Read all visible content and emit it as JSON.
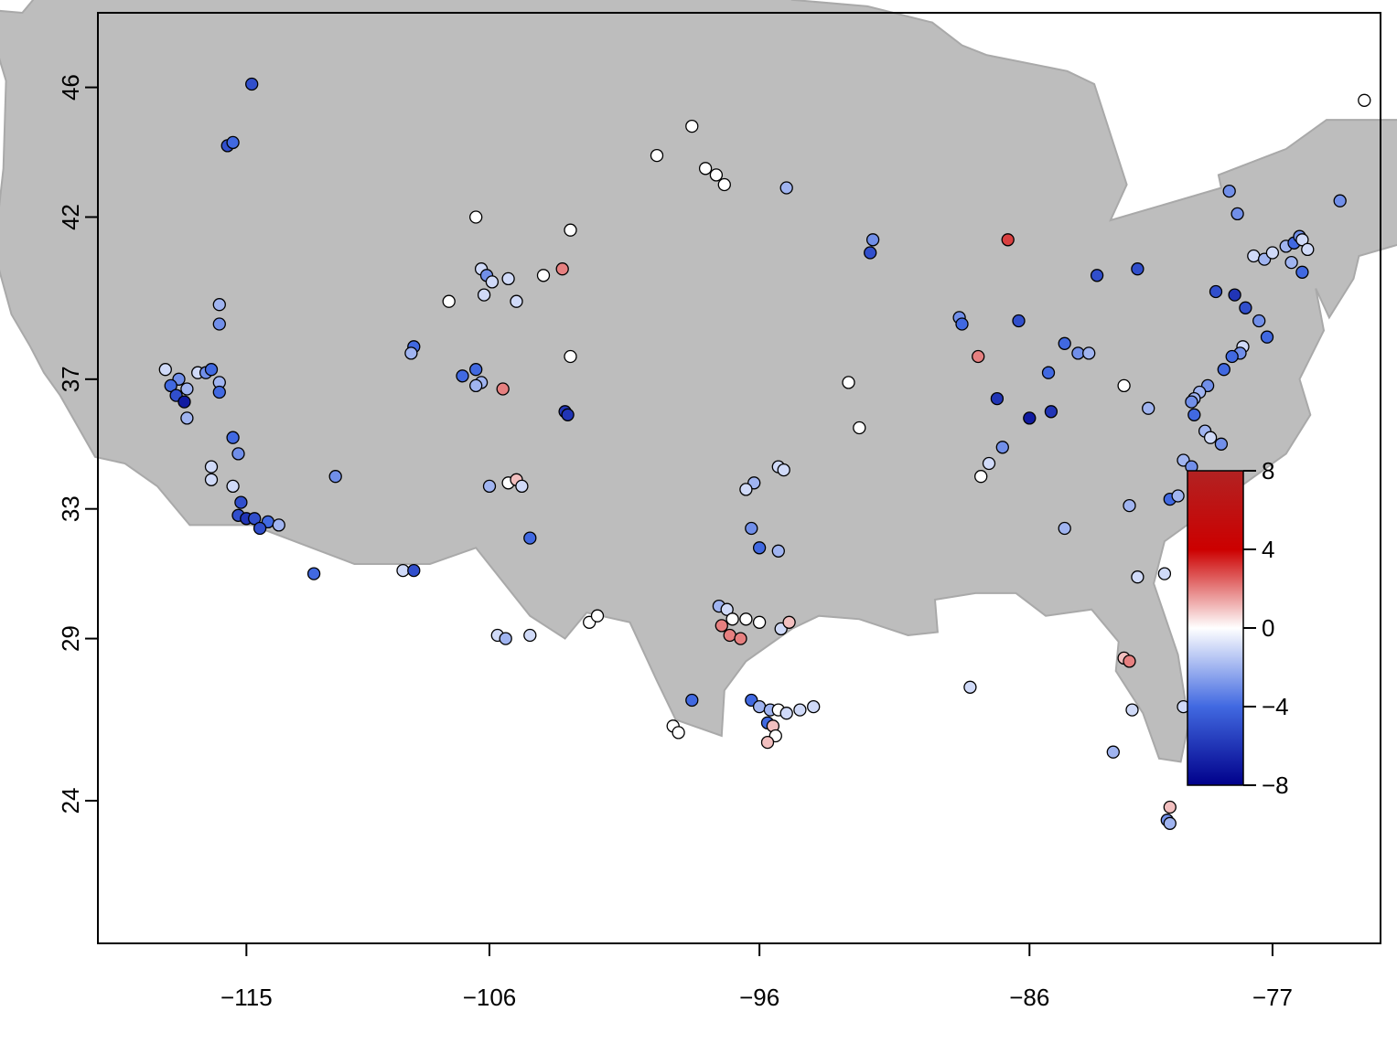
{
  "chart_data": {
    "type": "scatter",
    "title": "",
    "xlabel": "",
    "ylabel": "",
    "xlim": [
      -120.5,
      -73
    ],
    "ylim": [
      19.6,
      48.3
    ],
    "x_ticks": [
      -115,
      -106,
      -96,
      -86,
      -77
    ],
    "x_tick_labels": [
      "−115",
      "−106",
      "−96",
      "−86",
      "−77"
    ],
    "y_ticks": [
      24,
      29,
      33,
      37,
      42,
      46
    ],
    "y_tick_labels": [
      "24",
      "29",
      "33",
      "37",
      "42",
      "46"
    ],
    "basemap": {
      "region": "contiguous-usa",
      "fill": "#bdbdbd",
      "border": "#a9a9a9",
      "outline": [
        [
          -123.3,
          48.3
        ],
        [
          -122.7,
          48.9
        ],
        [
          -117,
          49
        ],
        [
          -110,
          49
        ],
        [
          -104,
          49
        ],
        [
          -97.2,
          49
        ],
        [
          -95.2,
          49.2
        ],
        [
          -94.8,
          48.7
        ],
        [
          -92,
          48.5
        ],
        [
          -89.6,
          48.0
        ],
        [
          -88.5,
          47.3
        ],
        [
          -87.6,
          47.0
        ],
        [
          -84.6,
          46.5
        ],
        [
          -83.6,
          46.1
        ],
        [
          -82.4,
          43.0
        ],
        [
          -83.0,
          41.9
        ],
        [
          -78.9,
          42.9
        ],
        [
          -79.0,
          43.3
        ],
        [
          -76.5,
          44.1
        ],
        [
          -75.0,
          45.0
        ],
        [
          -71.5,
          45.0
        ],
        [
          -69.0,
          47.4
        ],
        [
          -67.8,
          47.1
        ],
        [
          -67.0,
          44.9
        ],
        [
          -68.8,
          44.3
        ],
        [
          -70.2,
          43.6
        ],
        [
          -70.8,
          42.7
        ],
        [
          -69.9,
          41.7
        ],
        [
          -71.3,
          41.4
        ],
        [
          -73.8,
          40.8
        ],
        [
          -74.0,
          40.1
        ],
        [
          -74.9,
          38.9
        ],
        [
          -75.4,
          39.8
        ],
        [
          -75.1,
          38.5
        ],
        [
          -76.0,
          37.0
        ],
        [
          -75.6,
          35.9
        ],
        [
          -76.5,
          34.7
        ],
        [
          -78.0,
          33.8
        ],
        [
          -79.5,
          32.9
        ],
        [
          -81.0,
          32.0
        ],
        [
          -81.4,
          30.7
        ],
        [
          -80.5,
          28.5
        ],
        [
          -80.1,
          26.4
        ],
        [
          -80.4,
          25.2
        ],
        [
          -81.2,
          25.3
        ],
        [
          -81.8,
          26.7
        ],
        [
          -82.8,
          28.0
        ],
        [
          -82.7,
          28.9
        ],
        [
          -83.7,
          29.9
        ],
        [
          -85.4,
          29.7
        ],
        [
          -86.5,
          30.4
        ],
        [
          -88.0,
          30.4
        ],
        [
          -89.5,
          30.2
        ],
        [
          -89.4,
          29.2
        ],
        [
          -90.5,
          29.1
        ],
        [
          -92.3,
          29.6
        ],
        [
          -93.8,
          29.7
        ],
        [
          -94.8,
          29.3
        ],
        [
          -96.5,
          28.3
        ],
        [
          -97.3,
          27.4
        ],
        [
          -97.4,
          26.0
        ],
        [
          -99.1,
          26.5
        ],
        [
          -99.8,
          27.7
        ],
        [
          -100.8,
          29.5
        ],
        [
          -102.4,
          29.8
        ],
        [
          -103.2,
          29.0
        ],
        [
          -104.5,
          29.7
        ],
        [
          -106.5,
          31.8
        ],
        [
          -108.2,
          31.3
        ],
        [
          -111.0,
          31.3
        ],
        [
          -114.8,
          32.5
        ],
        [
          -117.1,
          32.5
        ],
        [
          -118.3,
          33.7
        ],
        [
          -119.5,
          34.4
        ],
        [
          -120.6,
          34.6
        ],
        [
          -121.9,
          36.5
        ],
        [
          -122.5,
          37.2
        ],
        [
          -123.0,
          38.0
        ],
        [
          -123.7,
          39.0
        ],
        [
          -124.2,
          40.5
        ],
        [
          -124.2,
          42.0
        ],
        [
          -124.0,
          43.5
        ],
        [
          -123.9,
          46.2
        ],
        [
          -124.7,
          48.4
        ]
      ]
    },
    "colorbar": {
      "min": -8,
      "max": 8,
      "ticks": [
        -8,
        -4,
        0,
        4,
        8
      ],
      "tick_labels": [
        "−8",
        "−4",
        "0",
        "4",
        "8"
      ],
      "colors": [
        "#00008b",
        "#4169e1",
        "#ffffff",
        "#cc0000",
        "#b22222"
      ]
    },
    "points": [
      {
        "x": -114.8,
        "y": 46.1,
        "v": -5
      },
      {
        "x": -115.7,
        "y": 44.2,
        "v": -5
      },
      {
        "x": -115.5,
        "y": 44.3,
        "v": -4
      },
      {
        "x": -116.0,
        "y": 39.3,
        "v": -2
      },
      {
        "x": -116.0,
        "y": 38.7,
        "v": -3
      },
      {
        "x": -118.0,
        "y": 37.3,
        "v": -1
      },
      {
        "x": -117.5,
        "y": 37.0,
        "v": -3
      },
      {
        "x": -117.8,
        "y": 36.8,
        "v": -4
      },
      {
        "x": -117.2,
        "y": 36.7,
        "v": -2
      },
      {
        "x": -117.6,
        "y": 36.5,
        "v": -5
      },
      {
        "x": -117.3,
        "y": 36.3,
        "v": -7
      },
      {
        "x": -116.8,
        "y": 37.2,
        "v": -1
      },
      {
        "x": -116.5,
        "y": 37.2,
        "v": -3
      },
      {
        "x": -116.3,
        "y": 37.3,
        "v": -4
      },
      {
        "x": -116.0,
        "y": 36.9,
        "v": -2
      },
      {
        "x": -116.0,
        "y": 36.6,
        "v": -4
      },
      {
        "x": -117.2,
        "y": 35.8,
        "v": -2
      },
      {
        "x": -115.5,
        "y": 35.2,
        "v": -4
      },
      {
        "x": -115.3,
        "y": 34.7,
        "v": -3
      },
      {
        "x": -116.3,
        "y": 34.3,
        "v": -1
      },
      {
        "x": -116.3,
        "y": 33.9,
        "v": -1
      },
      {
        "x": -115.5,
        "y": 33.7,
        "v": -1
      },
      {
        "x": -115.2,
        "y": 33.2,
        "v": -5
      },
      {
        "x": -115.3,
        "y": 32.8,
        "v": -5
      },
      {
        "x": -115.0,
        "y": 32.7,
        "v": -6
      },
      {
        "x": -114.7,
        "y": 32.7,
        "v": -5
      },
      {
        "x": -114.2,
        "y": 32.6,
        "v": -4
      },
      {
        "x": -114.5,
        "y": 32.4,
        "v": -5
      },
      {
        "x": -113.8,
        "y": 32.5,
        "v": -2
      },
      {
        "x": -112.5,
        "y": 31.0,
        "v": -4
      },
      {
        "x": -111.7,
        "y": 34.0,
        "v": -3
      },
      {
        "x": -109.2,
        "y": 31.1,
        "v": -1
      },
      {
        "x": -108.8,
        "y": 31.1,
        "v": -5
      },
      {
        "x": -106.5,
        "y": 42.0,
        "v": 0
      },
      {
        "x": -106.3,
        "y": 40.4,
        "v": -1
      },
      {
        "x": -106.1,
        "y": 40.2,
        "v": -3
      },
      {
        "x": -105.9,
        "y": 40.0,
        "v": -1
      },
      {
        "x": -105.3,
        "y": 40.1,
        "v": -1
      },
      {
        "x": -106.2,
        "y": 39.6,
        "v": -1
      },
      {
        "x": -105.0,
        "y": 39.4,
        "v": -1
      },
      {
        "x": -107.5,
        "y": 39.4,
        "v": 0
      },
      {
        "x": -104.0,
        "y": 40.2,
        "v": 0
      },
      {
        "x": -103.3,
        "y": 40.4,
        "v": 2
      },
      {
        "x": -103.0,
        "y": 41.6,
        "v": 0
      },
      {
        "x": -108.8,
        "y": 38.0,
        "v": -4
      },
      {
        "x": -108.9,
        "y": 37.8,
        "v": -2
      },
      {
        "x": -107.0,
        "y": 37.1,
        "v": -4
      },
      {
        "x": -106.5,
        "y": 37.3,
        "v": -4
      },
      {
        "x": -106.3,
        "y": 36.9,
        "v": -2
      },
      {
        "x": -106.5,
        "y": 36.8,
        "v": -2
      },
      {
        "x": -105.5,
        "y": 36.7,
        "v": 2
      },
      {
        "x": -103.0,
        "y": 37.7,
        "v": 0
      },
      {
        "x": -103.2,
        "y": 36.0,
        "v": -6
      },
      {
        "x": -103.1,
        "y": 35.9,
        "v": -6
      },
      {
        "x": -106.0,
        "y": 33.7,
        "v": -2
      },
      {
        "x": -105.3,
        "y": 33.8,
        "v": 0
      },
      {
        "x": -105.0,
        "y": 33.9,
        "v": 1
      },
      {
        "x": -104.8,
        "y": 33.7,
        "v": -1
      },
      {
        "x": -104.5,
        "y": 32.1,
        "v": -4
      },
      {
        "x": -105.7,
        "y": 29.1,
        "v": -1
      },
      {
        "x": -105.4,
        "y": 29.0,
        "v": -2
      },
      {
        "x": -104.5,
        "y": 29.1,
        "v": -1
      },
      {
        "x": -102.3,
        "y": 29.5,
        "v": 0
      },
      {
        "x": -102.0,
        "y": 29.7,
        "v": 0
      },
      {
        "x": -99.8,
        "y": 43.9,
        "v": 0
      },
      {
        "x": -98.5,
        "y": 44.8,
        "v": 0
      },
      {
        "x": -98.0,
        "y": 43.5,
        "v": 0
      },
      {
        "x": -97.6,
        "y": 43.3,
        "v": 0
      },
      {
        "x": -97.3,
        "y": 43.0,
        "v": 0
      },
      {
        "x": -95.0,
        "y": 42.9,
        "v": -2
      },
      {
        "x": -91.8,
        "y": 41.3,
        "v": -3
      },
      {
        "x": -91.9,
        "y": 40.9,
        "v": -5
      },
      {
        "x": -95.3,
        "y": 34.3,
        "v": -1
      },
      {
        "x": -95.1,
        "y": 34.2,
        "v": -1
      },
      {
        "x": -96.2,
        "y": 33.8,
        "v": -2
      },
      {
        "x": -96.5,
        "y": 33.6,
        "v": -1
      },
      {
        "x": -96.3,
        "y": 32.4,
        "v": -3
      },
      {
        "x": -96.0,
        "y": 31.8,
        "v": -4
      },
      {
        "x": -95.3,
        "y": 31.7,
        "v": -2
      },
      {
        "x": -97.5,
        "y": 30.0,
        "v": -2
      },
      {
        "x": -97.2,
        "y": 29.9,
        "v": -1
      },
      {
        "x": -97.0,
        "y": 29.6,
        "v": 0
      },
      {
        "x": -97.4,
        "y": 29.4,
        "v": 2
      },
      {
        "x": -97.1,
        "y": 29.1,
        "v": 2
      },
      {
        "x": -96.7,
        "y": 29.0,
        "v": 2
      },
      {
        "x": -96.5,
        "y": 29.6,
        "v": 0
      },
      {
        "x": -96.0,
        "y": 29.5,
        "v": 0
      },
      {
        "x": -95.2,
        "y": 29.3,
        "v": -1
      },
      {
        "x": -94.9,
        "y": 29.5,
        "v": 1
      },
      {
        "x": -96.3,
        "y": 27.1,
        "v": -4
      },
      {
        "x": -96.0,
        "y": 26.9,
        "v": -2
      },
      {
        "x": -95.6,
        "y": 26.8,
        "v": -2
      },
      {
        "x": -95.3,
        "y": 26.8,
        "v": 0
      },
      {
        "x": -95.0,
        "y": 26.7,
        "v": -1
      },
      {
        "x": -94.5,
        "y": 26.8,
        "v": -1
      },
      {
        "x": -94.0,
        "y": 26.9,
        "v": -1
      },
      {
        "x": -95.7,
        "y": 26.4,
        "v": -4
      },
      {
        "x": -95.5,
        "y": 26.3,
        "v": 1
      },
      {
        "x": -95.4,
        "y": 26.0,
        "v": 0
      },
      {
        "x": -95.7,
        "y": 25.8,
        "v": 1
      },
      {
        "x": -98.5,
        "y": 27.1,
        "v": -4
      },
      {
        "x": -99.2,
        "y": 26.3,
        "v": 0
      },
      {
        "x": -99.0,
        "y": 26.1,
        "v": 0
      },
      {
        "x": -92.7,
        "y": 36.9,
        "v": 0
      },
      {
        "x": -92.3,
        "y": 35.5,
        "v": 0
      },
      {
        "x": -88.6,
        "y": 38.9,
        "v": -3
      },
      {
        "x": -88.5,
        "y": 38.7,
        "v": -4
      },
      {
        "x": -87.9,
        "y": 37.7,
        "v": 2
      },
      {
        "x": -87.2,
        "y": 36.4,
        "v": -6
      },
      {
        "x": -86.0,
        "y": 35.8,
        "v": -7
      },
      {
        "x": -84.7,
        "y": 38.1,
        "v": -4
      },
      {
        "x": -85.3,
        "y": 37.2,
        "v": -4
      },
      {
        "x": -85.2,
        "y": 36.0,
        "v": -6
      },
      {
        "x": -87.0,
        "y": 34.9,
        "v": -3
      },
      {
        "x": -87.5,
        "y": 34.4,
        "v": -1
      },
      {
        "x": -87.8,
        "y": 34.0,
        "v": 0
      },
      {
        "x": -88.2,
        "y": 27.5,
        "v": -1
      },
      {
        "x": -86.8,
        "y": 41.3,
        "v": 3
      },
      {
        "x": -86.4,
        "y": 38.8,
        "v": -5
      },
      {
        "x": -83.5,
        "y": 40.2,
        "v": -5
      },
      {
        "x": -82.0,
        "y": 40.4,
        "v": -5
      },
      {
        "x": -84.2,
        "y": 37.8,
        "v": -3
      },
      {
        "x": -83.8,
        "y": 37.8,
        "v": -2
      },
      {
        "x": -82.5,
        "y": 36.8,
        "v": 0
      },
      {
        "x": -81.6,
        "y": 36.1,
        "v": -2
      },
      {
        "x": -80.3,
        "y": 34.5,
        "v": -2
      },
      {
        "x": -80.0,
        "y": 34.3,
        "v": -3
      },
      {
        "x": -82.3,
        "y": 33.1,
        "v": -2
      },
      {
        "x": -80.8,
        "y": 33.3,
        "v": -4
      },
      {
        "x": -80.5,
        "y": 33.4,
        "v": -2
      },
      {
        "x": -84.7,
        "y": 32.4,
        "v": -2
      },
      {
        "x": -82.0,
        "y": 30.9,
        "v": -1
      },
      {
        "x": -82.5,
        "y": 28.4,
        "v": 1
      },
      {
        "x": -82.3,
        "y": 28.3,
        "v": 2
      },
      {
        "x": -82.2,
        "y": 26.8,
        "v": -1
      },
      {
        "x": -82.9,
        "y": 25.5,
        "v": -2
      },
      {
        "x": -80.8,
        "y": 23.8,
        "v": 1
      },
      {
        "x": -80.9,
        "y": 23.4,
        "v": -3
      },
      {
        "x": -80.8,
        "y": 23.3,
        "v": -2
      },
      {
        "x": -78.6,
        "y": 42.8,
        "v": -3
      },
      {
        "x": -78.3,
        "y": 42.1,
        "v": -3
      },
      {
        "x": -77.7,
        "y": 40.8,
        "v": -1
      },
      {
        "x": -77.3,
        "y": 40.7,
        "v": -2
      },
      {
        "x": -77.0,
        "y": 40.9,
        "v": -1
      },
      {
        "x": -76.5,
        "y": 41.1,
        "v": -2
      },
      {
        "x": -76.2,
        "y": 41.2,
        "v": -4
      },
      {
        "x": -76.0,
        "y": 41.4,
        "v": -3
      },
      {
        "x": -75.9,
        "y": 41.3,
        "v": -1
      },
      {
        "x": -75.7,
        "y": 41.0,
        "v": -1
      },
      {
        "x": -76.3,
        "y": 40.6,
        "v": -2
      },
      {
        "x": -75.9,
        "y": 40.3,
        "v": -4
      },
      {
        "x": -74.5,
        "y": 42.5,
        "v": -3
      },
      {
        "x": -73.6,
        "y": 45.6,
        "v": 0
      },
      {
        "x": -79.1,
        "y": 39.7,
        "v": -5
      },
      {
        "x": -78.4,
        "y": 39.6,
        "v": -6
      },
      {
        "x": -78.0,
        "y": 39.2,
        "v": -5
      },
      {
        "x": -77.5,
        "y": 38.8,
        "v": -3
      },
      {
        "x": -77.2,
        "y": 38.3,
        "v": -4
      },
      {
        "x": -78.1,
        "y": 38.0,
        "v": -1
      },
      {
        "x": -78.2,
        "y": 37.8,
        "v": -3
      },
      {
        "x": -78.5,
        "y": 37.7,
        "v": -4
      },
      {
        "x": -78.8,
        "y": 37.3,
        "v": -4
      },
      {
        "x": -79.4,
        "y": 36.8,
        "v": -3
      },
      {
        "x": -79.7,
        "y": 36.6,
        "v": -2
      },
      {
        "x": -79.9,
        "y": 36.4,
        "v": -2
      },
      {
        "x": -80.0,
        "y": 36.3,
        "v": -3
      },
      {
        "x": -79.9,
        "y": 35.9,
        "v": -4
      },
      {
        "x": -79.5,
        "y": 35.4,
        "v": -2
      },
      {
        "x": -79.3,
        "y": 35.2,
        "v": -1
      },
      {
        "x": -78.9,
        "y": 35.0,
        "v": -3
      },
      {
        "x": -81.0,
        "y": 31.0,
        "v": -1
      },
      {
        "x": -80.3,
        "y": 26.9,
        "v": -1
      }
    ]
  }
}
